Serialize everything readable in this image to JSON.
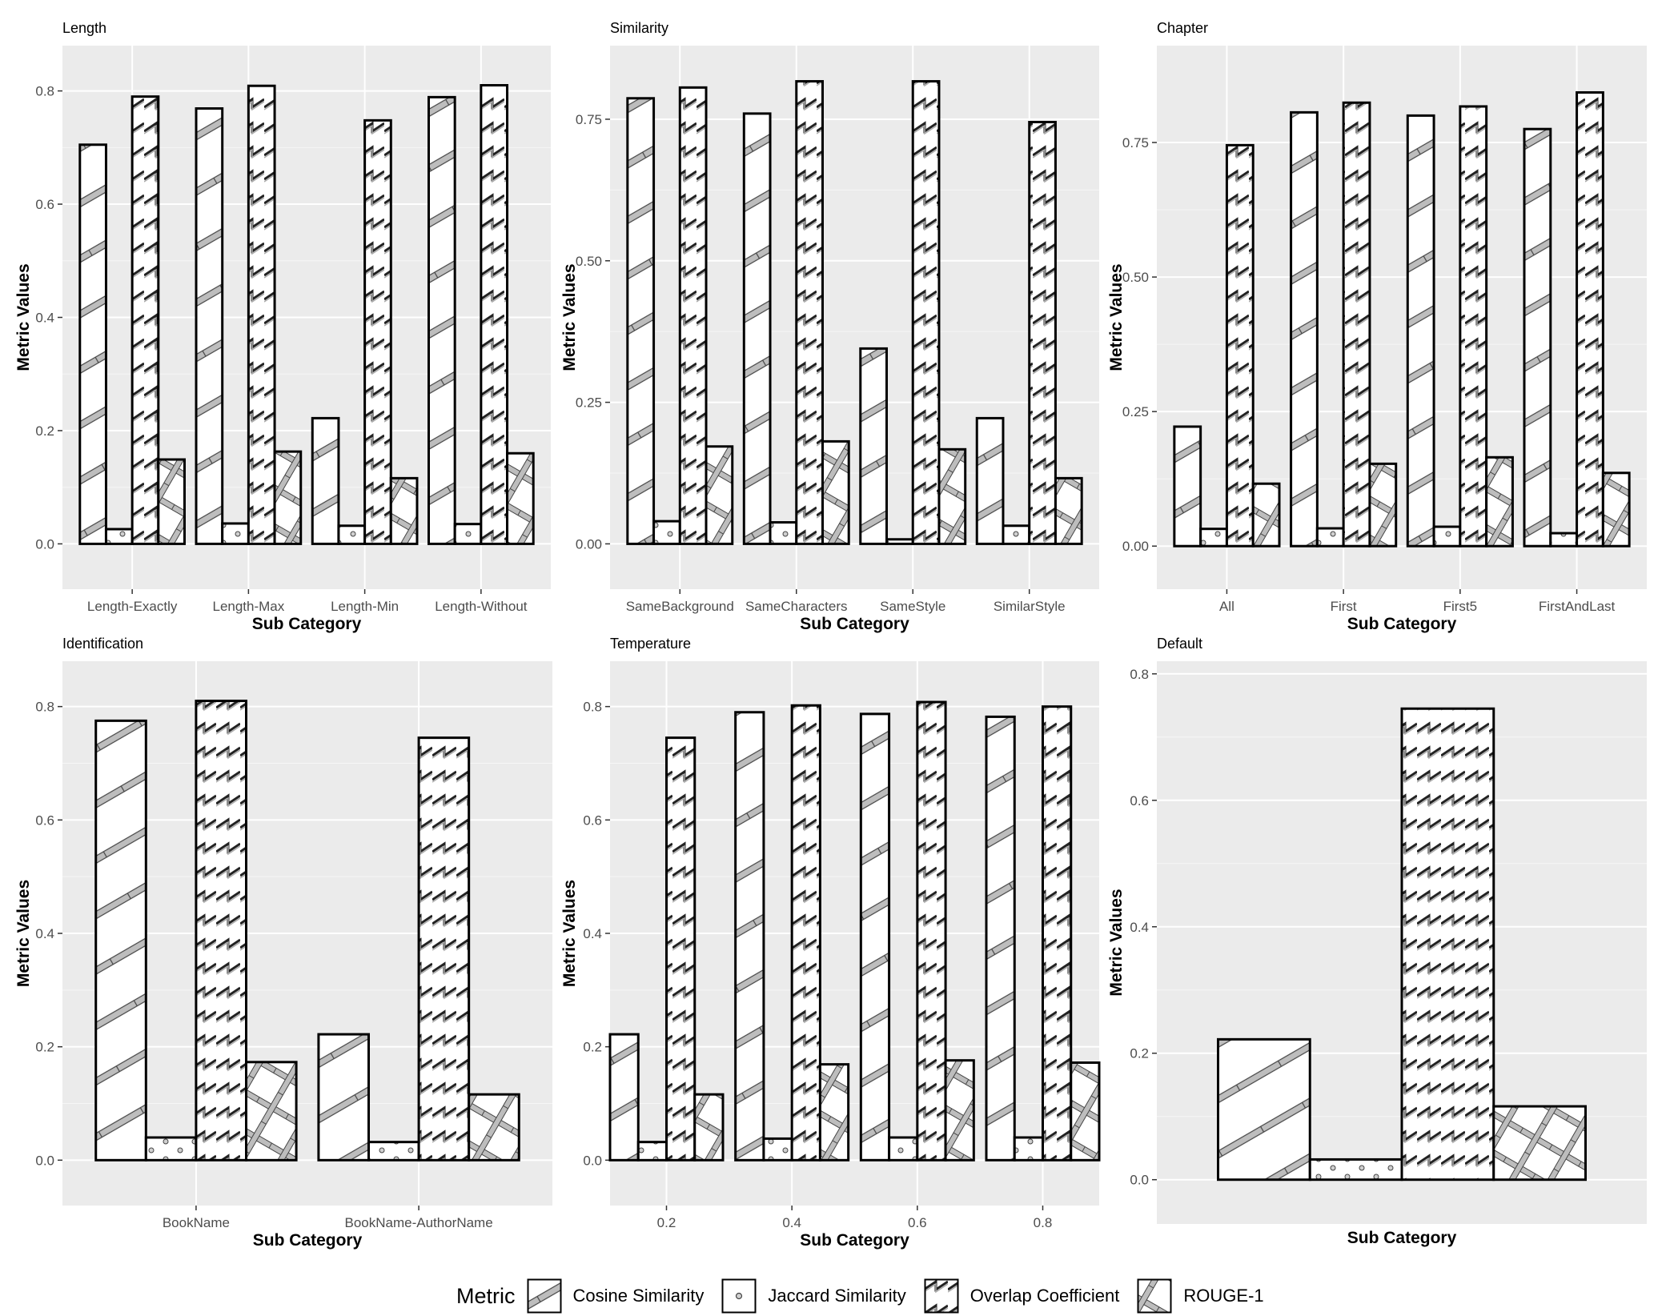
{
  "legend": {
    "title": "Metric",
    "items": [
      {
        "label": "Cosine Similarity",
        "pattern": "stripe"
      },
      {
        "label": "Jaccard Similarity",
        "pattern": "circle"
      },
      {
        "label": "Overlap Coefficient",
        "pattern": "zigzag"
      },
      {
        "label": "ROUGE-1",
        "pattern": "crosshatch"
      }
    ]
  },
  "chart_data": [
    {
      "type": "bar",
      "title": "Length",
      "xlabel": "Sub Category",
      "ylabel": "Metric Values",
      "ylim": [
        -0.08,
        0.88
      ],
      "yticks": [
        "0.0",
        "0.2",
        "0.4",
        "0.6",
        "0.8"
      ],
      "categories": [
        "Length-Exactly",
        "Length-Max",
        "Length-Min",
        "Length-Without"
      ],
      "series": [
        {
          "name": "Cosine Similarity",
          "values": [
            0.705,
            0.769,
            0.222,
            0.789
          ]
        },
        {
          "name": "Jaccard Similarity",
          "values": [
            0.026,
            0.036,
            0.032,
            0.035
          ]
        },
        {
          "name": "Overlap Coefficient",
          "values": [
            0.79,
            0.809,
            0.748,
            0.81
          ]
        },
        {
          "name": "ROUGE-1",
          "values": [
            0.149,
            0.163,
            0.116,
            0.16
          ]
        }
      ]
    },
    {
      "type": "bar",
      "title": "Similarity",
      "xlabel": "Sub Category",
      "ylabel": "Metric Values",
      "ylim": [
        -0.08,
        0.88
      ],
      "yticks": [
        "0.00",
        "0.25",
        "0.50",
        "0.75"
      ],
      "categories": [
        "SameBackground",
        "SameCharacters",
        "SameStyle",
        "SimilarStyle"
      ],
      "series": [
        {
          "name": "Cosine Similarity",
          "values": [
            0.787,
            0.76,
            0.345,
            0.222
          ]
        },
        {
          "name": "Jaccard Similarity",
          "values": [
            0.04,
            0.038,
            0.008,
            0.032
          ]
        },
        {
          "name": "Overlap Coefficient",
          "values": [
            0.806,
            0.817,
            0.817,
            0.745
          ]
        },
        {
          "name": "ROUGE-1",
          "values": [
            0.172,
            0.181,
            0.167,
            0.116
          ]
        }
      ]
    },
    {
      "type": "bar",
      "title": "Chapter",
      "xlabel": "Sub Category",
      "ylabel": "Metric Values",
      "ylim": [
        -0.08,
        0.93
      ],
      "yticks": [
        "0.00",
        "0.25",
        "0.50",
        "0.75"
      ],
      "categories": [
        "All",
        "First",
        "First5",
        "FirstAndLast"
      ],
      "series": [
        {
          "name": "Cosine Similarity",
          "values": [
            0.222,
            0.806,
            0.8,
            0.775
          ]
        },
        {
          "name": "Jaccard Similarity",
          "values": [
            0.032,
            0.033,
            0.036,
            0.024
          ]
        },
        {
          "name": "Overlap Coefficient",
          "values": [
            0.745,
            0.824,
            0.817,
            0.843
          ]
        },
        {
          "name": "ROUGE-1",
          "values": [
            0.116,
            0.153,
            0.165,
            0.136
          ]
        }
      ]
    },
    {
      "type": "bar",
      "title": "Identification",
      "xlabel": "Sub Category",
      "ylabel": "Metric Values",
      "ylim": [
        -0.08,
        0.88
      ],
      "yticks": [
        "0.0",
        "0.2",
        "0.4",
        "0.6",
        "0.8"
      ],
      "categories": [
        "BookName",
        "BookName-AuthorName"
      ],
      "series": [
        {
          "name": "Cosine Similarity",
          "values": [
            0.775,
            0.222
          ]
        },
        {
          "name": "Jaccard Similarity",
          "values": [
            0.04,
            0.032
          ]
        },
        {
          "name": "Overlap Coefficient",
          "values": [
            0.81,
            0.745
          ]
        },
        {
          "name": "ROUGE-1",
          "values": [
            0.173,
            0.116
          ]
        }
      ]
    },
    {
      "type": "bar",
      "title": "Temperature",
      "xlabel": "Sub Category",
      "ylabel": "Metric Values",
      "ylim": [
        -0.08,
        0.88
      ],
      "xlim": [
        0.11,
        0.89
      ],
      "yticks": [
        "0.0",
        "0.2",
        "0.4",
        "0.6",
        "0.8"
      ],
      "xticks": [
        "0.2",
        "0.4",
        "0.6",
        "0.8"
      ],
      "categories": [
        0.2,
        0.4,
        0.6,
        0.8
      ],
      "series": [
        {
          "name": "Cosine Similarity",
          "values": [
            0.222,
            0.79,
            0.787,
            0.782
          ]
        },
        {
          "name": "Jaccard Similarity",
          "values": [
            0.032,
            0.038,
            0.04,
            0.04
          ]
        },
        {
          "name": "Overlap Coefficient",
          "values": [
            0.745,
            0.802,
            0.808,
            0.8
          ]
        },
        {
          "name": "ROUGE-1",
          "values": [
            0.116,
            0.169,
            0.176,
            0.172
          ]
        }
      ]
    },
    {
      "type": "bar",
      "title": "Default",
      "xlabel": "Sub Category",
      "ylabel": "Metric Values",
      "ylim": [
        -0.07,
        0.82
      ],
      "yticks": [
        "0.0",
        "0.2",
        "0.4",
        "0.6",
        "0.8"
      ],
      "categories": [
        ""
      ],
      "series": [
        {
          "name": "Cosine Similarity",
          "values": [
            0.222
          ]
        },
        {
          "name": "Jaccard Similarity",
          "values": [
            0.032
          ]
        },
        {
          "name": "Overlap Coefficient",
          "values": [
            0.745
          ]
        },
        {
          "name": "ROUGE-1",
          "values": [
            0.116
          ]
        }
      ]
    }
  ]
}
